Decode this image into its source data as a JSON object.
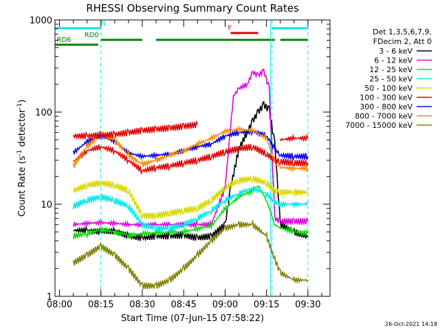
{
  "chart_data": {
    "type": "line",
    "title": "RHESSI Observing Summary Count Rates",
    "xlabel": "Start Time (07-Jun-15 07:58:22)",
    "ylabel_parts": [
      "Count Rate (s",
      "-1",
      " detector",
      "-1",
      ")"
    ],
    "y_scale": "log",
    "ylim": [
      1,
      1000
    ],
    "y_ticks": [
      {
        "value": 1,
        "label": "1"
      },
      {
        "value": 10,
        "label": "10"
      },
      {
        "value": 100,
        "label": "100"
      },
      {
        "value": 1000,
        "label": "1000"
      }
    ],
    "xlim": [
      "07:58:22",
      "09:38:00"
    ],
    "x_ticks": [
      "08:00",
      "08:15",
      "08:30",
      "08:45",
      "09:00",
      "09:15",
      "09:30"
    ],
    "legend": {
      "placement": "right",
      "header": [
        "Det 1,3,5,6,7,9,",
        "FDecim 2, Att 0"
      ]
    },
    "series": [
      {
        "name": "3 - 6 keV",
        "color": "#000000",
        "points": [
          [
            "08:05",
            5.2
          ],
          [
            "08:10",
            5.2
          ],
          [
            "08:15",
            5.0
          ],
          [
            "08:20",
            5.1
          ],
          [
            "08:25",
            4.5
          ],
          [
            "08:30",
            4.3
          ],
          [
            "08:35",
            4.5
          ],
          [
            "08:40",
            4.5
          ],
          [
            "08:45",
            4.6
          ],
          [
            "08:50",
            4.3
          ],
          [
            "08:55",
            4.5
          ],
          [
            "09:00",
            6
          ],
          [
            "09:02",
            15
          ],
          [
            "09:05",
            40
          ],
          [
            "09:08",
            60
          ],
          [
            "09:10",
            80
          ],
          [
            "09:12",
            100
          ],
          [
            "09:14",
            120
          ],
          [
            "09:16",
            105
          ],
          [
            "09:18",
            45
          ],
          [
            "09:20",
            6
          ],
          [
            "09:25",
            5
          ],
          [
            "09:30",
            4.4
          ]
        ]
      },
      {
        "name": "6 - 12 keV",
        "color": "#e000e0",
        "points": [
          [
            "08:05",
            6
          ],
          [
            "08:10",
            6.2
          ],
          [
            "08:15",
            6.3
          ],
          [
            "08:20",
            6.2
          ],
          [
            "08:25",
            6
          ],
          [
            "08:30",
            6
          ],
          [
            "08:35",
            6
          ],
          [
            "08:40",
            6
          ],
          [
            "08:45",
            6
          ],
          [
            "08:50",
            6
          ],
          [
            "08:55",
            6
          ],
          [
            "09:00",
            15
          ],
          [
            "09:03",
            150
          ],
          [
            "09:05",
            180
          ],
          [
            "09:08",
            200
          ],
          [
            "09:10",
            270
          ],
          [
            "09:12",
            250
          ],
          [
            "09:14",
            280
          ],
          [
            "09:16",
            180
          ],
          [
            "09:18",
            7
          ],
          [
            "09:20",
            6.5
          ],
          [
            "09:25",
            6.5
          ],
          [
            "09:30",
            6.5
          ]
        ]
      },
      {
        "name": "12 - 25 keV",
        "color": "#00e000",
        "points": [
          [
            "08:05",
            4.5
          ],
          [
            "08:10",
            4.8
          ],
          [
            "08:15",
            5.3
          ],
          [
            "08:20",
            5.0
          ],
          [
            "08:25",
            4.6
          ],
          [
            "08:30",
            4.8
          ],
          [
            "08:35",
            4.9
          ],
          [
            "08:40",
            5.0
          ],
          [
            "08:45",
            5.0
          ],
          [
            "08:50",
            5.4
          ],
          [
            "08:55",
            5.8
          ],
          [
            "09:00",
            9
          ],
          [
            "09:05",
            12
          ],
          [
            "09:10",
            14
          ],
          [
            "09:12",
            16
          ],
          [
            "09:15",
            11
          ],
          [
            "09:18",
            6
          ],
          [
            "09:20",
            5.5
          ],
          [
            "09:25",
            5
          ],
          [
            "09:30",
            4.8
          ]
        ]
      },
      {
        "name": "25 - 50 keV",
        "color": "#00e8e8",
        "points": [
          [
            "08:05",
            9.5
          ],
          [
            "08:10",
            11
          ],
          [
            "08:15",
            12
          ],
          [
            "08:20",
            11
          ],
          [
            "08:25",
            9.5
          ],
          [
            "08:30",
            6
          ],
          [
            "08:35",
            5.5
          ],
          [
            "08:40",
            5.5
          ],
          [
            "08:45",
            6
          ],
          [
            "08:50",
            7
          ],
          [
            "08:55",
            8.5
          ],
          [
            "09:00",
            11
          ],
          [
            "09:05",
            13
          ],
          [
            "09:10",
            15
          ],
          [
            "09:15",
            13
          ],
          [
            "09:18",
            10.5
          ],
          [
            "09:20",
            10
          ],
          [
            "09:25",
            10
          ],
          [
            "09:30",
            10
          ]
        ]
      },
      {
        "name": "50 - 100 keV",
        "color": "#d8d800",
        "points": [
          [
            "08:05",
            14
          ],
          [
            "08:10",
            16
          ],
          [
            "08:15",
            17
          ],
          [
            "08:20",
            16
          ],
          [
            "08:25",
            14
          ],
          [
            "08:30",
            7.5
          ],
          [
            "08:35",
            7.5
          ],
          [
            "08:40",
            8
          ],
          [
            "08:45",
            8.5
          ],
          [
            "08:50",
            9
          ],
          [
            "08:55",
            11
          ],
          [
            "09:00",
            15
          ],
          [
            "09:05",
            18
          ],
          [
            "09:10",
            19
          ],
          [
            "09:15",
            17
          ],
          [
            "09:18",
            14
          ],
          [
            "09:20",
            13.5
          ],
          [
            "09:25",
            13.5
          ],
          [
            "09:30",
            13.5
          ]
        ]
      },
      {
        "name": "100 - 300 keV",
        "color": "#e00000",
        "points": [
          [
            "08:05",
            29
          ],
          [
            "08:10",
            38
          ],
          [
            "08:15",
            42
          ],
          [
            "08:20",
            38
          ],
          [
            "08:25",
            30
          ],
          [
            "08:30",
            23
          ],
          [
            "08:35",
            25
          ],
          [
            "08:40",
            26
          ],
          [
            "08:45",
            28
          ],
          [
            "08:50",
            30
          ],
          [
            "08:55",
            33
          ],
          [
            "09:00",
            37
          ],
          [
            "09:05",
            40
          ],
          [
            "09:10",
            42
          ],
          [
            "09:15",
            35
          ],
          [
            "09:18",
            30
          ],
          [
            "09:20",
            29
          ],
          [
            "09:25",
            28
          ],
          [
            "09:30",
            28
          ]
        ]
      },
      {
        "name": "300 - 800 keV",
        "color": "#0000e0",
        "points": [
          [
            "08:05",
            36
          ],
          [
            "08:10",
            48
          ],
          [
            "08:15",
            55
          ],
          [
            "08:20",
            48
          ],
          [
            "08:25",
            36
          ],
          [
            "08:30",
            33
          ],
          [
            "08:35",
            34
          ],
          [
            "08:40",
            35
          ],
          [
            "08:45",
            38
          ],
          [
            "08:50",
            42
          ],
          [
            "08:55",
            45
          ],
          [
            "09:00",
            55
          ],
          [
            "09:05",
            60
          ],
          [
            "09:10",
            62
          ],
          [
            "09:15",
            55
          ],
          [
            "09:18",
            40
          ],
          [
            "09:20",
            34
          ],
          [
            "09:25",
            33
          ],
          [
            "09:30",
            33
          ]
        ]
      },
      {
        "name": "800 - 7000 keV",
        "color": "#ff8800",
        "points": [
          [
            "08:05",
            26
          ],
          [
            "08:10",
            42
          ],
          [
            "08:15",
            58
          ],
          [
            "08:20",
            50
          ],
          [
            "08:25",
            34
          ],
          [
            "08:30",
            27
          ],
          [
            "08:35",
            30
          ],
          [
            "08:40",
            34
          ],
          [
            "08:45",
            38
          ],
          [
            "08:50",
            45
          ],
          [
            "08:55",
            52
          ],
          [
            "09:00",
            62
          ],
          [
            "09:05",
            65
          ],
          [
            "09:10",
            63
          ],
          [
            "09:15",
            52
          ],
          [
            "09:18",
            28
          ],
          [
            "09:20",
            25
          ],
          [
            "09:25",
            24.5
          ],
          [
            "09:30",
            24.5
          ]
        ]
      },
      {
        "name": "7000 - 15000 keV",
        "color": "#808000",
        "points": [
          [
            "08:05",
            2.3
          ],
          [
            "08:10",
            2.8
          ],
          [
            "08:15",
            3.5
          ],
          [
            "08:20",
            2.8
          ],
          [
            "08:25",
            2
          ],
          [
            "08:30",
            1.3
          ],
          [
            "08:35",
            1.3
          ],
          [
            "08:40",
            1.5
          ],
          [
            "08:45",
            2
          ],
          [
            "08:50",
            2.8
          ],
          [
            "08:55",
            4
          ],
          [
            "09:00",
            5.5
          ],
          [
            "09:05",
            6
          ],
          [
            "09:10",
            6
          ],
          [
            "09:15",
            4.5
          ],
          [
            "09:18",
            2.5
          ],
          [
            "09:20",
            1.8
          ],
          [
            "09:25",
            1.5
          ],
          [
            "09:30",
            1.5
          ]
        ]
      },
      {
        "name": "",
        "color": "#e00000",
        "points": [
          [
            "08:05",
            55
          ],
          [
            "08:10",
            55
          ],
          [
            "08:15",
            56
          ],
          [
            "08:20",
            57
          ],
          [
            "08:25",
            60
          ],
          [
            "08:30",
            63
          ],
          [
            "08:35",
            65
          ],
          [
            "08:40",
            67
          ],
          [
            "08:45",
            70
          ],
          [
            "08:50",
            73
          ]
        ]
      },
      {
        "name": "",
        "color": "#e00000",
        "points": [
          [
            "09:20",
            50
          ],
          [
            "09:25",
            52
          ],
          [
            "09:30",
            52
          ]
        ]
      }
    ],
    "flags": [
      {
        "name": "N",
        "color": "#00e8e8",
        "label_at": "08:15",
        "segments": [
          [
            "07:58:22",
            "08:15:00"
          ],
          [
            "09:17:00",
            "09:30:00"
          ]
        ]
      },
      {
        "name": "F",
        "color": "#e00000",
        "label_at": "09:01",
        "segments": [
          [
            "09:02:00",
            "09:12:00"
          ]
        ]
      },
      {
        "name": "RD0",
        "color": "#008000",
        "label_at": "08:09",
        "segments": [
          [
            "08:15:00",
            "08:30:00"
          ],
          [
            "08:35:00",
            "08:54:00"
          ],
          [
            "08:54:00",
            "09:18:00"
          ],
          [
            "09:20:00",
            "09:30:00"
          ]
        ]
      },
      {
        "name": "RD6",
        "color": "#008000",
        "label_at": "07:59",
        "segments": [
          [
            "07:58:22",
            "08:14:00"
          ]
        ]
      }
    ],
    "vertical_markers": {
      "dashed_cyan": [
        "08:15:00",
        "09:17:00",
        "09:30:00"
      ],
      "solid_cyan": [
        "09:17:00"
      ]
    }
  },
  "footer": {
    "timestamp": "26-Oct-2021 14:18"
  }
}
